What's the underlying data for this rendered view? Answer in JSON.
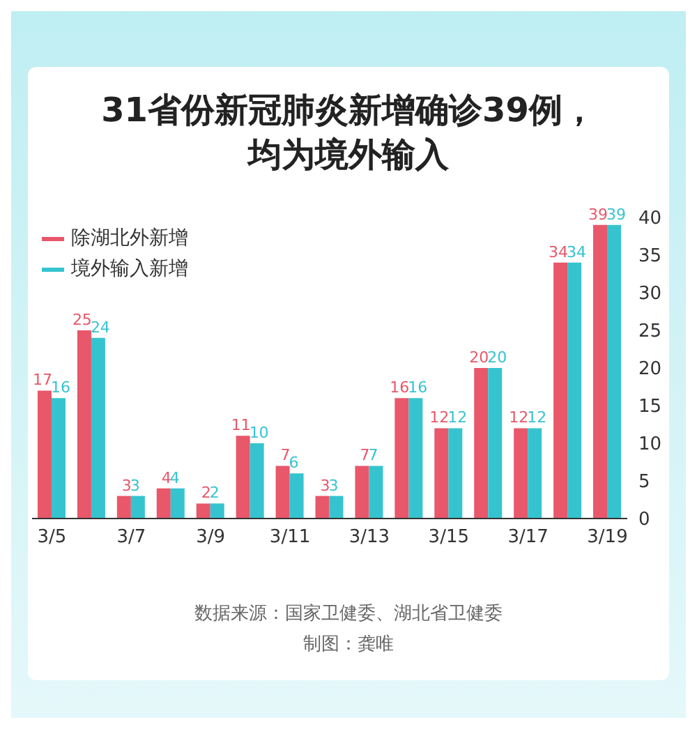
{
  "chart_data": {
    "type": "bar",
    "title": "31省份新冠肺炎新增确诊39例，均为境外输入",
    "categories": [
      "3/5",
      null,
      "3/7",
      null,
      "3/9",
      null,
      "3/11",
      null,
      "3/13",
      null,
      "3/15",
      null,
      "3/17",
      null,
      "3/19"
    ],
    "series": [
      {
        "name": "除湖北外新增",
        "color": "#e8576a",
        "values": [
          17,
          25,
          3,
          4,
          2,
          11,
          7,
          3,
          7,
          16,
          12,
          20,
          12,
          34,
          39
        ]
      },
      {
        "name": "境外输入新增",
        "color": "#35c4cf",
        "values": [
          16,
          24,
          3,
          4,
          2,
          10,
          6,
          3,
          7,
          16,
          12,
          20,
          12,
          34,
          39
        ]
      }
    ],
    "ylim": [
      0,
      40
    ],
    "yticks": [
      0,
      5,
      10,
      15,
      20,
      25,
      30,
      35,
      40
    ],
    "grid": false,
    "legend": "top left",
    "data_labels": true,
    "annotations": [
      "数据来源：国家卫健委、湖北省卫健委",
      "制图：龚唯"
    ]
  }
}
